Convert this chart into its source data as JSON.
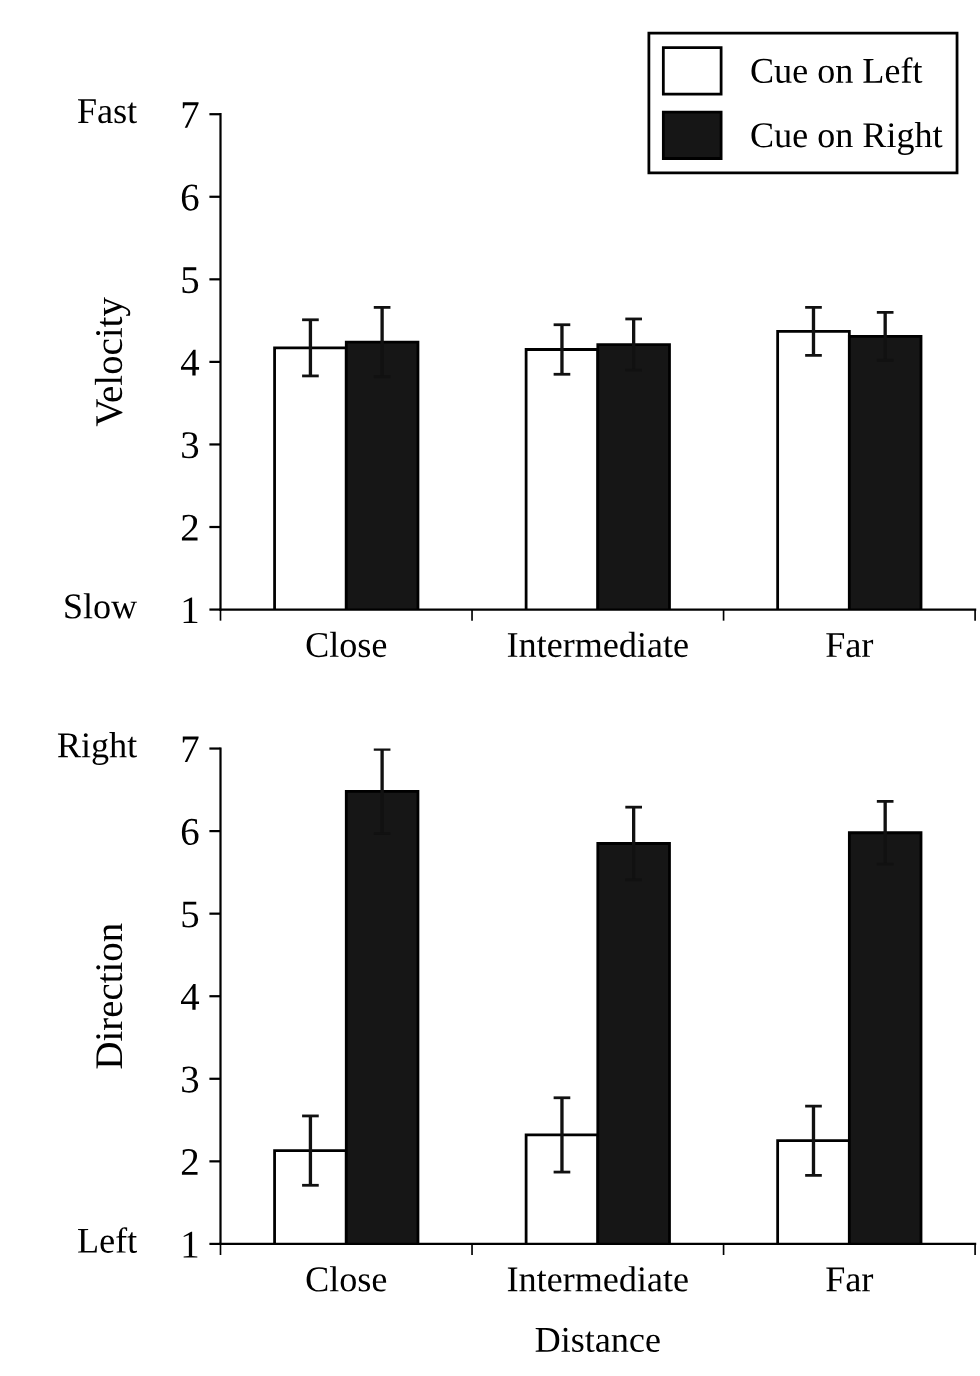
{
  "chart_data": [
    {
      "type": "bar",
      "ylabel": "Velocity",
      "categories": [
        "Close",
        "Intermediate",
        "Far"
      ],
      "series": [
        {
          "name": "Cue on Left",
          "color": "#ffffff",
          "values": [
            4.17,
            4.15,
            4.37
          ],
          "errors": [
            0.34,
            0.3,
            0.29
          ]
        },
        {
          "name": "Cue on Right",
          "color": "#161616",
          "values": [
            4.24,
            4.21,
            4.31
          ],
          "errors": [
            0.42,
            0.31,
            0.29
          ]
        }
      ],
      "ylim": [
        1,
        7
      ],
      "yticks": [
        1,
        2,
        3,
        4,
        5,
        6,
        7
      ],
      "legend": "top right",
      "grid": false,
      "annotations": [
        "Fast",
        "Slow"
      ]
    },
    {
      "type": "bar",
      "ylabel": "Direction",
      "xlabel": "Distance",
      "categories": [
        "Close",
        "Intermediate",
        "Far"
      ],
      "series": [
        {
          "color": "#ffffff",
          "values": [
            2.13,
            2.32,
            2.25
          ],
          "errors": [
            0.42,
            0.45,
            0.42
          ]
        },
        {
          "color": "#161616",
          "values": [
            6.48,
            5.85,
            5.98
          ],
          "errors": [
            0.51,
            0.44,
            0.38
          ]
        }
      ],
      "ylim": [
        1,
        7
      ],
      "yticks": [
        1,
        2,
        3,
        4,
        5,
        6,
        7
      ],
      "legend": false,
      "grid": false,
      "annotations": [
        "Right",
        "Left"
      ]
    }
  ]
}
